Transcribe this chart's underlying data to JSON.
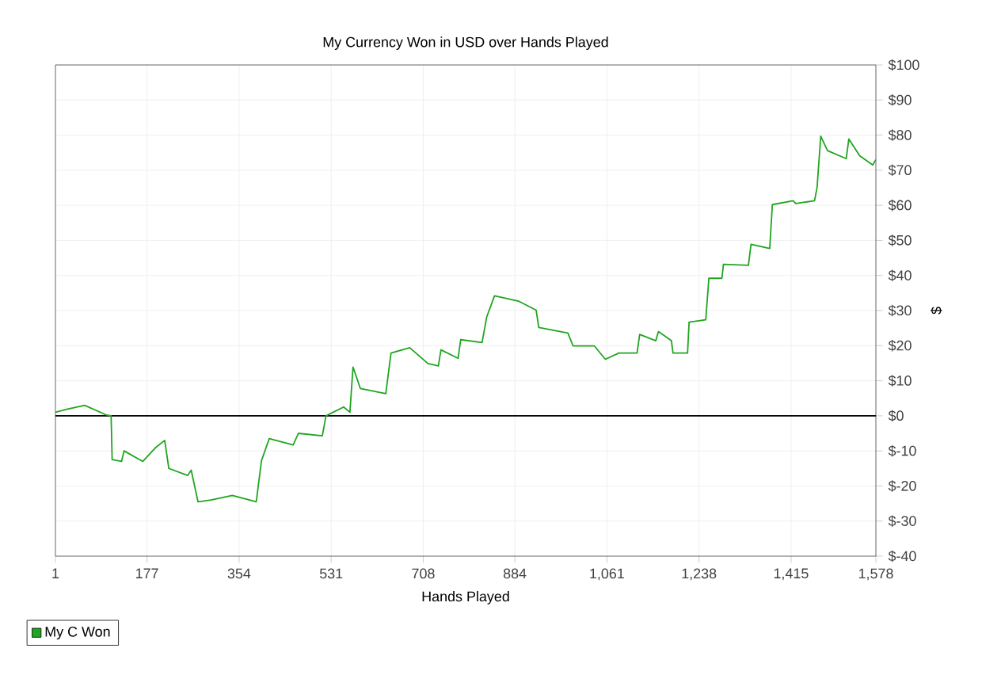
{
  "chart_data": {
    "type": "line",
    "title": "My Currency Won in USD over Hands Played",
    "xlabel": "Hands Played",
    "ylabel": "$",
    "xlim": [
      1,
      1578
    ],
    "xticks": [
      1,
      177,
      354,
      531,
      708,
      884,
      {
        "value": 1061,
        "label": "1,061"
      },
      {
        "value": 1238,
        "label": "1,238"
      },
      {
        "value": 1415,
        "label": "1,415"
      },
      {
        "value": 1578,
        "label": "1,578"
      }
    ],
    "ylim": [
      -40,
      100
    ],
    "yticks": [
      {
        "value": -40,
        "label": "$-40"
      },
      {
        "value": -30,
        "label": "$-30"
      },
      {
        "value": -20,
        "label": "$-20"
      },
      {
        "value": -10,
        "label": "$-10"
      },
      {
        "value": 0,
        "label": "$0"
      },
      {
        "value": 10,
        "label": "$10"
      },
      {
        "value": 20,
        "label": "$20"
      },
      {
        "value": 30,
        "label": "$30"
      },
      {
        "value": 40,
        "label": "$40"
      },
      {
        "value": 50,
        "label": "$50"
      },
      {
        "value": 60,
        "label": "$60"
      },
      {
        "value": 70,
        "label": "$70"
      },
      {
        "value": 80,
        "label": "$80"
      },
      {
        "value": 90,
        "label": "$90"
      },
      {
        "value": 100,
        "label": "$100"
      }
    ],
    "grid": true,
    "legend": "bottom left",
    "ref_lines": [
      {
        "axis": "y",
        "value": 0,
        "color": "#000000"
      }
    ],
    "series": [
      {
        "name": "My C Won",
        "color": "#1fa51f",
        "x": [
          1,
          21,
          57,
          98,
          108,
          110,
          128,
          133,
          169,
          194,
          211,
          219,
          255,
          262,
          275,
          300,
          341,
          387,
          397,
          412,
          458,
          468,
          514,
          521,
          555,
          567,
          573,
          587,
          636,
          646,
          682,
          717,
          737,
          742,
          775,
          780,
          821,
          830,
          845,
          891,
          925,
          930,
          986,
          996,
          1037,
          1058,
          1084,
          1119,
          1124,
          1155,
          1160,
          1185,
          1188,
          1216,
          1219,
          1251,
          1257,
          1282,
          1285,
          1333,
          1338,
          1374,
          1379,
          1419,
          1424,
          1460,
          1465,
          1472,
          1485,
          1521,
          1526,
          1547,
          1572,
          1578
        ],
        "values": [
          1,
          1.8,
          3,
          0.3,
          0,
          -12.5,
          -13,
          -10,
          -13,
          -9,
          -7,
          -15,
          -17,
          -15.5,
          -24.5,
          -24,
          -22.7,
          -24.5,
          -12.8,
          -6.5,
          -8.3,
          -5,
          -5.7,
          0,
          2.5,
          1,
          13.9,
          7.8,
          6.3,
          17.9,
          19.4,
          14.9,
          14.2,
          18.8,
          16.4,
          21.7,
          20.9,
          28.2,
          34.2,
          32.7,
          30.1,
          25.2,
          23.6,
          19.9,
          19.9,
          16.1,
          17.9,
          17.9,
          23.2,
          21.4,
          24,
          21.4,
          17.9,
          17.9,
          26.7,
          27.4,
          39.2,
          39.2,
          43.2,
          42.9,
          48.9,
          47.7,
          60.2,
          61.3,
          60.5,
          61.3,
          65.1,
          79.7,
          75.6,
          73.3,
          78.9,
          74.1,
          71.5,
          73
        ]
      }
    ]
  }
}
